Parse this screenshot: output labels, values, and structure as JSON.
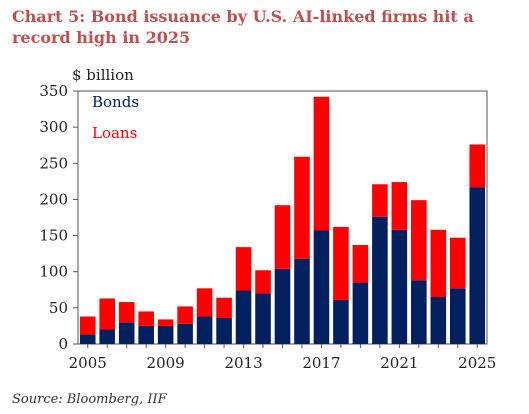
{
  "title": "Chart 5: Bond issuance by U.S. AI-linked firms hit a record high in 2025",
  "source": "Source: Bloomberg, IIF",
  "colors": {
    "title": "#c0504d",
    "bonds": "#002060",
    "loans": "#ff0000",
    "axis": "#555555"
  },
  "chart_data": {
    "type": "bar",
    "stacked": true,
    "title": "Chart 5: Bond issuance by U.S. AI-linked firms hit a record high in 2025",
    "ylabel": "$ billion",
    "xlabel": "",
    "ylim": [
      0,
      350
    ],
    "yticks": [
      0,
      50,
      100,
      150,
      200,
      250,
      300,
      350
    ],
    "categories": [
      "2005",
      "2006",
      "2007",
      "2008",
      "2009",
      "2010",
      "2011",
      "2012",
      "2013",
      "2014",
      "2015",
      "2016",
      "2017",
      "2018",
      "2019",
      "2020",
      "2021",
      "2022",
      "2023",
      "2024",
      "2025"
    ],
    "xtick_labels": [
      "2005",
      "2009",
      "2013",
      "2017",
      "2021",
      "2025"
    ],
    "series": [
      {
        "name": "Bonds",
        "color": "#002060",
        "values": [
          13,
          20,
          30,
          25,
          25,
          28,
          38,
          36,
          74,
          70,
          104,
          118,
          157,
          61,
          85,
          176,
          158,
          88,
          65,
          77,
          217
        ]
      },
      {
        "name": "Loans",
        "color": "#ff0000",
        "values": [
          25,
          43,
          28,
          20,
          9,
          24,
          39,
          28,
          60,
          32,
          88,
          141,
          185,
          101,
          52,
          45,
          66,
          111,
          93,
          70,
          59
        ]
      }
    ],
    "legend": "top-left inside",
    "grid": false
  }
}
